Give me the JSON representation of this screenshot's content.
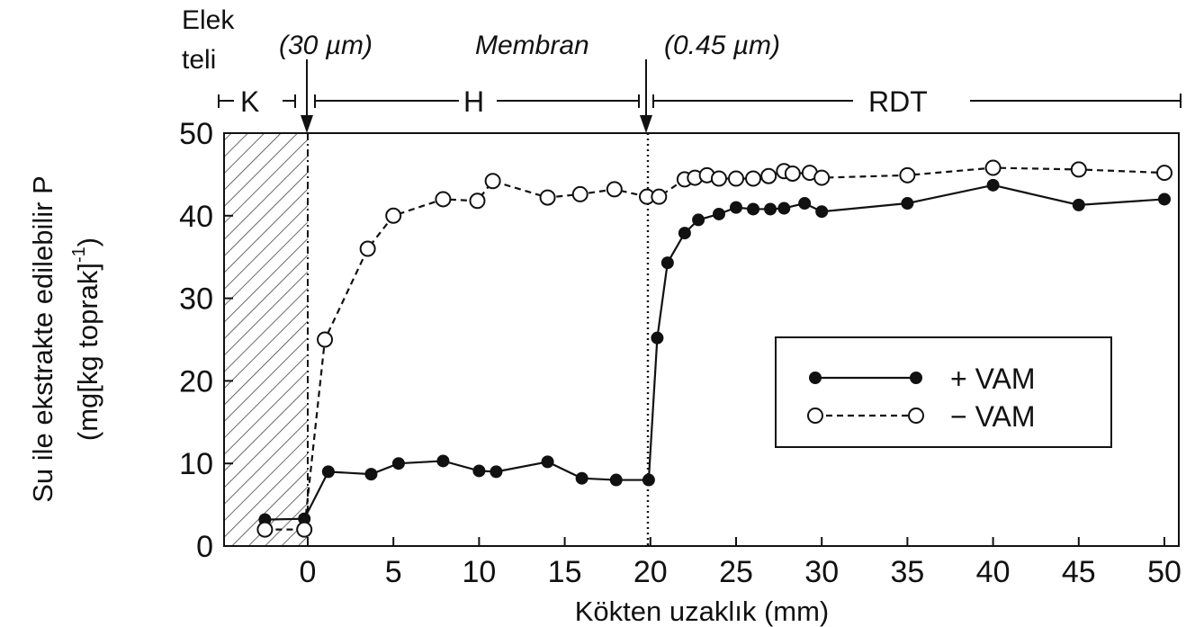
{
  "chart_data": {
    "type": "line",
    "xlabel": "Kökten uzaklık (mm)",
    "ylabel_line1": "Su ile ekstrakte edilebilir P",
    "ylabel_line2": "(mg[kg toprak]",
    "ylabel_sup": "-1",
    "ylabel_close": ")",
    "xlim": [
      -5,
      50
    ],
    "ylim": [
      0,
      50
    ],
    "x_ticks": [
      0,
      5,
      10,
      15,
      20,
      25,
      30,
      35,
      40,
      45,
      50
    ],
    "y_ticks": [
      0,
      10,
      20,
      30,
      40,
      50
    ],
    "grid": false,
    "legend_position": "center-right",
    "annotations": {
      "elek_line1": "Elek",
      "elek_line2": "teli",
      "mesh1": "(30 µm)",
      "membran": "Membran",
      "mesh2": "(0.45 µm)",
      "zone_k": "K",
      "zone_h": "H",
      "zone_rdt": "RDT"
    },
    "series": [
      {
        "name": "+ VAM",
        "style": "solid",
        "marker": "filled-circle",
        "x": [
          -2.5,
          -0.2,
          1.2,
          3.7,
          5.3,
          7.9,
          10,
          11,
          14,
          16,
          18,
          19.9,
          20.4,
          21,
          22,
          22.8,
          24,
          25,
          26,
          27,
          27.8,
          29,
          30,
          35,
          40,
          45,
          50
        ],
        "y": [
          3.2,
          3.3,
          9,
          8.7,
          10,
          10.3,
          9.1,
          9,
          10.2,
          8.2,
          8,
          8,
          25.2,
          34.3,
          37.9,
          39.5,
          40.2,
          41,
          40.8,
          40.8,
          40.9,
          41.5,
          40.5,
          41.5,
          43.7,
          41.3,
          42
        ]
      },
      {
        "name": "− VAM",
        "style": "dashed",
        "marker": "open-circle",
        "x": [
          -2.5,
          -0.2,
          1,
          3.5,
          5,
          7.9,
          9.9,
          10.8,
          14,
          15.9,
          17.9,
          19.8,
          20.5,
          22,
          22.6,
          23.3,
          24,
          25,
          26,
          26.9,
          27.8,
          28.3,
          29.3,
          30,
          35,
          40,
          45,
          50
        ],
        "y": [
          2,
          2,
          25,
          36,
          40,
          42,
          41.8,
          44.2,
          42.2,
          42.6,
          43.2,
          42.3,
          42.3,
          44.4,
          44.6,
          44.9,
          44.5,
          44.5,
          44.5,
          44.8,
          45.4,
          45.1,
          45.2,
          44.6,
          44.9,
          45.8,
          45.6,
          45.2
        ]
      }
    ]
  },
  "legend": {
    "items": [
      {
        "label": "+ VAM",
        "style": "solid",
        "marker": "filled-circle"
      },
      {
        "label": "− VAM",
        "style": "dashed",
        "marker": "open-circle"
      }
    ]
  },
  "colors": {
    "ink": "#111111",
    "hatch": "#444444",
    "background": "#ffffff"
  }
}
